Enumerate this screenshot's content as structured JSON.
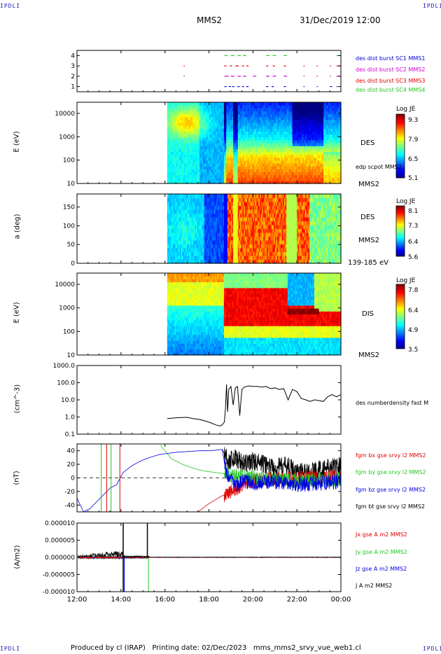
{
  "page": {
    "corner_tl": "IPDLI",
    "corner_tr": "IPDLI",
    "corner_bl": "IPDLI",
    "corner_br": "IPDLI",
    "header_spacecraft": "MMS2",
    "header_datetime": "31/Dec/2019 12:00",
    "footer": "Produced by cl (IRAP)   Printing date: 02/Dec/2023   mms_mms2_srvy_vue_web1.cl"
  },
  "colors": {
    "black": "#000000",
    "red": "#e00000",
    "green": "#22c822",
    "blue": "#0000e0",
    "magenta": "#d000d0",
    "label_blue": "#0000c8"
  },
  "chart_data": [
    {
      "id": "burst",
      "type": "scatter",
      "y_ticks": [
        "1",
        "2",
        "3",
        "4"
      ],
      "ylim": [
        0.5,
        4.5
      ],
      "series": [
        {
          "name": "des dist burst SC1 MMS1",
          "color": "#0000c8",
          "level": 1,
          "segments": [
            [
              18.7,
              18.8
            ],
            [
              18.9,
              19.0
            ],
            [
              19.05,
              19.15
            ],
            [
              19.3,
              19.4
            ],
            [
              19.5,
              19.6
            ],
            [
              19.7,
              19.8
            ],
            [
              20.6,
              20.7
            ],
            [
              20.85,
              20.95
            ],
            [
              21.4,
              21.5
            ],
            [
              22.3,
              22.35
            ],
            [
              22.9,
              22.95
            ],
            [
              23.5,
              23.6
            ],
            [
              23.8,
              23.85
            ]
          ]
        },
        {
          "name": "des dist burst SC2 MMS2",
          "color": "#d000d0",
          "level": 2,
          "segments": [
            [
              16.85,
              16.9
            ],
            [
              18.7,
              18.9
            ],
            [
              19.0,
              19.15
            ],
            [
              19.3,
              19.45
            ],
            [
              19.55,
              19.7
            ],
            [
              20.0,
              20.15
            ],
            [
              20.6,
              20.75
            ],
            [
              20.9,
              21.05
            ],
            [
              21.4,
              21.55
            ],
            [
              22.3,
              22.35
            ],
            [
              22.9,
              22.95
            ],
            [
              23.5,
              23.55
            ],
            [
              23.8,
              24.0
            ]
          ]
        },
        {
          "name": "des dist burst SC3 MMS3",
          "color": "#e00000",
          "level": 3,
          "segments": [
            [
              16.85,
              16.9
            ],
            [
              18.7,
              18.8
            ],
            [
              18.95,
              19.05
            ],
            [
              19.2,
              19.35
            ],
            [
              19.5,
              19.6
            ],
            [
              19.7,
              19.8
            ],
            [
              20.6,
              20.7
            ],
            [
              20.9,
              21.0
            ],
            [
              21.4,
              21.5
            ],
            [
              22.3,
              22.35
            ],
            [
              22.9,
              22.95
            ],
            [
              23.5,
              23.55
            ],
            [
              23.8,
              24.0
            ]
          ]
        },
        {
          "name": "des dist burst SC4 MMS4",
          "color": "#22c822",
          "level": 4,
          "segments": [
            [
              18.7,
              18.85
            ],
            [
              19.0,
              19.15
            ],
            [
              19.3,
              19.45
            ],
            [
              19.55,
              19.7
            ],
            [
              20.6,
              20.75
            ],
            [
              20.9,
              21.05
            ],
            [
              21.4,
              21.55
            ],
            [
              23.8,
              24.0
            ]
          ]
        }
      ]
    },
    {
      "id": "des_energy",
      "type": "heatmap",
      "ylabel": "E (eV)",
      "y_scale": "log",
      "y_ticks": [
        "10",
        "100",
        "1000",
        "10000"
      ],
      "ylim": [
        10,
        30000
      ],
      "right_labels": [
        "DES",
        "edp scpot MMS2",
        "MMS2"
      ],
      "colorbar": {
        "title": "Log JE",
        "ticks": [
          "9.3",
          "7.9",
          "6.5",
          "5.1"
        ],
        "range": [
          5.1,
          9.3
        ]
      }
    },
    {
      "id": "des_pitch",
      "type": "heatmap",
      "ylabel": "a (deg)",
      "y_ticks": [
        "0",
        "50",
        "100",
        "150"
      ],
      "ylim": [
        0,
        185
      ],
      "right_labels": [
        "DES",
        "MMS2",
        "139-185 eV"
      ],
      "colorbar": {
        "title": "Log JE",
        "ticks": [
          "8.1",
          "7.3",
          "6.4",
          "5.6"
        ],
        "range": [
          5.6,
          8.1
        ]
      }
    },
    {
      "id": "dis_energy",
      "type": "heatmap",
      "ylabel": "E (eV)",
      "y_scale": "log",
      "y_ticks": [
        "10",
        "100",
        "1000",
        "10000"
      ],
      "ylim": [
        10,
        30000
      ],
      "right_labels": [
        "DIS",
        "MMS2"
      ],
      "colorbar": {
        "title": "Log JE",
        "ticks": [
          "7.8",
          "6.4",
          "4.9",
          "3.5"
        ],
        "range": [
          3.5,
          7.8
        ]
      }
    },
    {
      "id": "density",
      "type": "line",
      "ylabel": "(cm^-3)",
      "y_scale": "log",
      "y_ticks": [
        "0.1",
        "1.0",
        "10.0",
        "100.0",
        "1000.0"
      ],
      "ylim": [
        0.1,
        1000
      ],
      "series": [
        {
          "name": "des numberdensity fast M",
          "color": "#000000",
          "x": [
            16.1,
            16.5,
            17.0,
            17.3,
            17.6,
            17.9,
            18.1,
            18.3,
            18.5,
            18.6,
            18.7,
            18.75,
            18.8,
            18.85,
            18.9,
            19.0,
            19.1,
            19.2,
            19.3,
            19.4,
            19.5,
            19.6,
            19.8,
            20.0,
            20.2,
            20.4,
            20.6,
            20.8,
            21.0,
            21.2,
            21.4,
            21.6,
            21.8,
            22.0,
            22.2,
            22.4,
            22.6,
            22.8,
            23.0,
            23.2,
            23.4,
            23.6,
            23.8,
            24.0
          ],
          "y": [
            0.8,
            0.9,
            0.95,
            0.8,
            0.7,
            0.55,
            0.45,
            0.35,
            0.3,
            0.35,
            0.5,
            3.0,
            80,
            2.0,
            40,
            60,
            5.0,
            50,
            60,
            1.2,
            40,
            55,
            65,
            60,
            60,
            55,
            60,
            45,
            50,
            40,
            45,
            10,
            40,
            30,
            12,
            10,
            8,
            10,
            9,
            8,
            15,
            20,
            15,
            20
          ]
        }
      ]
    },
    {
      "id": "bfield",
      "type": "line",
      "ylabel": "(nT)",
      "y_ticks": [
        "-40",
        "-20",
        "0",
        "20",
        "40"
      ],
      "ylim": [
        -50,
        50
      ],
      "series": [
        {
          "name": "fgm bx gse srvy l2 MMS2",
          "color": "#e00000",
          "x": [
            17.5,
            18.0,
            18.5,
            19.0,
            19.3,
            19.6,
            20.0,
            20.5,
            21.0,
            21.5,
            22.0,
            22.5,
            23.0,
            23.5,
            24.0
          ],
          "y": [
            -50,
            -38,
            -28,
            -20,
            -15,
            -8,
            -5,
            -3,
            -2,
            -1,
            -1,
            0,
            0,
            2,
            3
          ]
        },
        {
          "name": "fgm by gse srvy l2 MMS2",
          "color": "#22c822",
          "x": [
            15.8,
            16.3,
            16.8,
            17.3,
            17.8,
            18.3,
            18.7,
            19.0,
            19.5,
            20.0,
            21.0,
            22.0,
            23.0,
            24.0
          ],
          "y": [
            48,
            28,
            20,
            14,
            10,
            8,
            6,
            4,
            2,
            0,
            -2,
            -4,
            -3,
            -2
          ]
        },
        {
          "name": "fgm bz gse srvy l2 MMS2",
          "color": "#0000e0",
          "x": [
            12.0,
            12.3,
            12.6,
            12.9,
            13.2,
            13.5,
            13.8,
            14.1,
            14.5,
            14.9,
            15.3,
            15.7,
            16.1,
            16.6,
            17.1,
            17.6,
            18.1,
            18.6,
            18.8,
            19.2,
            19.6,
            20.0,
            21.0,
            22.0,
            23.0,
            24.0
          ],
          "y": [
            -30,
            -50,
            -45,
            -35,
            -25,
            -15,
            -10,
            8,
            18,
            25,
            30,
            34,
            36,
            38,
            39,
            40,
            40,
            42,
            5,
            -10,
            -5,
            -8,
            -5,
            -10,
            -8,
            -5
          ]
        },
        {
          "name": "fgm bt gse srvy l2 MMS2",
          "color": "#000000",
          "x": [
            18.6,
            18.9,
            19.2,
            19.6,
            20.0,
            20.5,
            21.0,
            21.5,
            22.0,
            22.5,
            23.0,
            23.5,
            24.0
          ],
          "y": [
            42,
            25,
            30,
            20,
            25,
            20,
            15,
            18,
            10,
            8,
            12,
            15,
            18
          ]
        }
      ]
    },
    {
      "id": "current",
      "type": "line",
      "ylabel": "(A/m2)",
      "y_ticks": [
        "-0.000010",
        "-0.000005",
        "0.000000",
        "0.000005",
        "0.000010"
      ],
      "ylim": [
        -1e-05,
        1e-05
      ],
      "xlim_hours": [
        12,
        24
      ],
      "x_ticks": [
        "12:00",
        "14:00",
        "16:00",
        "18:00",
        "20:00",
        "22:00",
        "00:00"
      ],
      "series": [
        {
          "name": "Jx gse A m2 MMS2",
          "color": "#e00000"
        },
        {
          "name": "Jy gse A m2 MMS2",
          "color": "#22c822"
        },
        {
          "name": "Jz gse A m2 MMS2",
          "color": "#0000e0"
        },
        {
          "name": "J A m2 MMS2",
          "color": "#000000"
        }
      ]
    }
  ]
}
